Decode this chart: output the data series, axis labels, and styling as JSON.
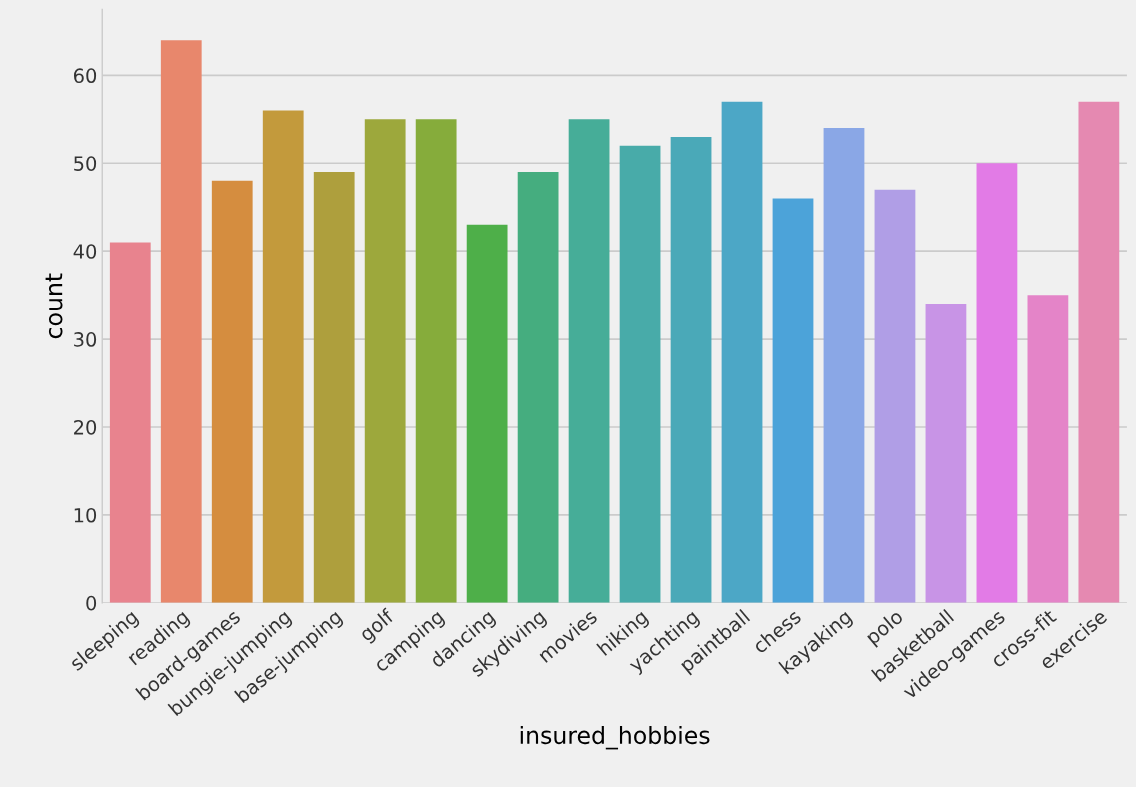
{
  "chart_data": {
    "type": "bar",
    "xlabel": "insured_hobbies",
    "ylabel": "count",
    "categories": [
      "sleeping",
      "reading",
      "board-games",
      "bungie-jumping",
      "base-jumping",
      "golf",
      "camping",
      "dancing",
      "skydiving",
      "movies",
      "hiking",
      "yachting",
      "paintball",
      "chess",
      "kayaking",
      "polo",
      "basketball",
      "video-games",
      "cross-fit",
      "exercise"
    ],
    "values": [
      41,
      64,
      48,
      56,
      49,
      55,
      55,
      43,
      49,
      55,
      52,
      53,
      57,
      46,
      54,
      47,
      34,
      50,
      35,
      57
    ],
    "colors": [
      "#e8838e",
      "#e8876c",
      "#d58d3f",
      "#c39a3c",
      "#ae9f3d",
      "#9da83c",
      "#86ac3b",
      "#4eaf49",
      "#45ad7f",
      "#46ad98",
      "#48aba9",
      "#4aa9b8",
      "#4ca7c6",
      "#4ca3d9",
      "#8aa7e6",
      "#b09ee6",
      "#c894e6",
      "#e27be6",
      "#e484c8",
      "#e589b1"
    ],
    "ylim": [
      0,
      67.5
    ],
    "yticks": [
      0,
      10,
      20,
      30,
      40,
      50,
      60
    ],
    "grid": "y"
  }
}
